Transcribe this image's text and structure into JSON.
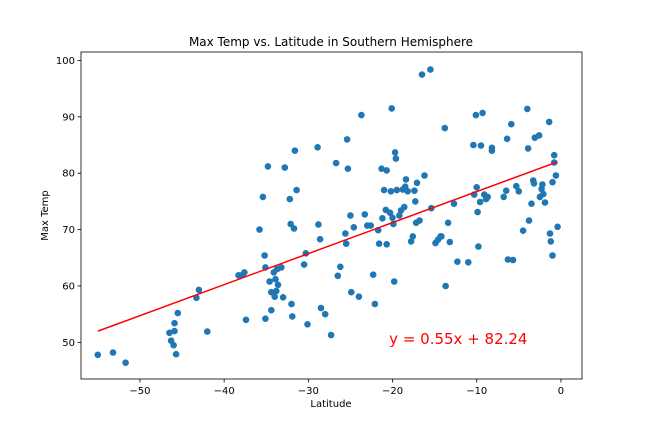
{
  "chart_data": {
    "type": "scatter",
    "title": "Max Temp vs. Latitude in Southern Hemisphere",
    "xlabel": "Latitude",
    "ylabel": "Max Temp",
    "xlim": [
      -57,
      2.5
    ],
    "ylim": [
      43.5,
      101.5
    ],
    "xticks": [
      -50,
      -40,
      -30,
      -20,
      -10,
      0
    ],
    "xtick_labels": [
      "−50",
      "−40",
      "−30",
      "−20",
      "−10",
      "0"
    ],
    "yticks": [
      50,
      60,
      70,
      80,
      90,
      100
    ],
    "ytick_labels": [
      "50",
      "60",
      "70",
      "80",
      "90",
      "100"
    ],
    "grid": false,
    "legend": "none",
    "point_color": "#1f77b4",
    "line_color": "#ff0000",
    "points": [
      [
        -55.0,
        47.8
      ],
      [
        -53.2,
        48.2
      ],
      [
        -51.7,
        46.4
      ],
      [
        -46.5,
        51.7
      ],
      [
        -46.3,
        50.3
      ],
      [
        -46.0,
        49.5
      ],
      [
        -45.9,
        53.4
      ],
      [
        -45.7,
        47.9
      ],
      [
        -45.5,
        55.2
      ],
      [
        -45.9,
        52.0
      ],
      [
        -43.3,
        57.9
      ],
      [
        -43.0,
        59.3
      ],
      [
        -42.0,
        51.9
      ],
      [
        -38.3,
        61.9
      ],
      [
        -37.8,
        62.0
      ],
      [
        -37.6,
        62.4
      ],
      [
        -37.4,
        54.0
      ],
      [
        -35.8,
        70.0
      ],
      [
        -35.4,
        75.8
      ],
      [
        -35.2,
        65.4
      ],
      [
        -35.1,
        63.3
      ],
      [
        -35.1,
        54.2
      ],
      [
        -34.8,
        81.2
      ],
      [
        -34.6,
        60.8
      ],
      [
        -34.4,
        58.9
      ],
      [
        -34.4,
        55.7
      ],
      [
        -34.1,
        62.4
      ],
      [
        -34.0,
        58.1
      ],
      [
        -33.9,
        61.2
      ],
      [
        -33.8,
        59.1
      ],
      [
        -33.7,
        63.0
      ],
      [
        -33.6,
        60.2
      ],
      [
        -33.2,
        63.3
      ],
      [
        -33.0,
        58.0
      ],
      [
        -32.8,
        81.0
      ],
      [
        -32.2,
        75.4
      ],
      [
        -32.1,
        71.0
      ],
      [
        -32.0,
        56.8
      ],
      [
        -31.9,
        54.6
      ],
      [
        -31.7,
        70.2
      ],
      [
        -31.6,
        84.0
      ],
      [
        -31.4,
        77.0
      ],
      [
        -30.5,
        63.8
      ],
      [
        -30.3,
        65.8
      ],
      [
        -30.1,
        53.2
      ],
      [
        -28.9,
        84.6
      ],
      [
        -28.8,
        70.9
      ],
      [
        -28.6,
        68.3
      ],
      [
        -28.5,
        56.1
      ],
      [
        -28.0,
        55.0
      ],
      [
        -27.3,
        51.3
      ],
      [
        -26.7,
        81.8
      ],
      [
        -26.5,
        61.8
      ],
      [
        -26.2,
        63.4
      ],
      [
        -25.6,
        69.3
      ],
      [
        -25.5,
        67.5
      ],
      [
        -25.4,
        86.0
      ],
      [
        -25.3,
        80.8
      ],
      [
        -25.0,
        72.5
      ],
      [
        -24.9,
        58.9
      ],
      [
        -24.6,
        70.4
      ],
      [
        -24.0,
        58.1
      ],
      [
        -23.7,
        90.3
      ],
      [
        -23.3,
        72.7
      ],
      [
        -23.0,
        70.7
      ],
      [
        -22.6,
        70.7
      ],
      [
        -22.3,
        62.0
      ],
      [
        -22.1,
        56.8
      ],
      [
        -21.7,
        69.9
      ],
      [
        -21.6,
        67.5
      ],
      [
        -21.3,
        80.8
      ],
      [
        -21.2,
        72.0
      ],
      [
        -21.0,
        77.0
      ],
      [
        -20.8,
        73.5
      ],
      [
        -20.7,
        67.4
      ],
      [
        -20.7,
        80.5
      ],
      [
        -20.3,
        73.0
      ],
      [
        -20.2,
        76.8
      ],
      [
        -20.1,
        91.5
      ],
      [
        -20.0,
        72.1
      ],
      [
        -19.9,
        71.0
      ],
      [
        -19.8,
        60.8
      ],
      [
        -19.7,
        83.7
      ],
      [
        -19.6,
        82.6
      ],
      [
        -19.5,
        77.0
      ],
      [
        -19.2,
        72.5
      ],
      [
        -19.0,
        73.4
      ],
      [
        -18.8,
        77.1
      ],
      [
        -18.6,
        74.0
      ],
      [
        -18.5,
        77.6
      ],
      [
        -18.4,
        78.9
      ],
      [
        -18.2,
        76.8
      ],
      [
        -17.8,
        67.9
      ],
      [
        -17.6,
        68.8
      ],
      [
        -17.4,
        76.9
      ],
      [
        -17.3,
        75.0
      ],
      [
        -17.2,
        71.2
      ],
      [
        -17.1,
        78.3
      ],
      [
        -16.8,
        71.6
      ],
      [
        -16.5,
        97.5
      ],
      [
        -16.2,
        79.6
      ],
      [
        -15.5,
        98.4
      ],
      [
        -15.4,
        73.8
      ],
      [
        -14.9,
        67.6
      ],
      [
        -14.6,
        68.2
      ],
      [
        -14.3,
        68.8
      ],
      [
        -14.2,
        68.8
      ],
      [
        -13.8,
        88.0
      ],
      [
        -13.7,
        60.0
      ],
      [
        -13.4,
        71.2
      ],
      [
        -13.2,
        67.8
      ],
      [
        -12.7,
        74.6
      ],
      [
        -12.3,
        64.3
      ],
      [
        -11.0,
        64.2
      ],
      [
        -10.4,
        85.0
      ],
      [
        -10.3,
        76.2
      ],
      [
        -10.1,
        90.3
      ],
      [
        -10.0,
        77.5
      ],
      [
        -9.9,
        73.1
      ],
      [
        -9.8,
        67.0
      ],
      [
        -9.6,
        74.9
      ],
      [
        -9.5,
        84.9
      ],
      [
        -9.3,
        90.7
      ],
      [
        -9.1,
        76.2
      ],
      [
        -8.9,
        75.4
      ],
      [
        -8.7,
        75.8
      ],
      [
        -8.2,
        84.5
      ],
      [
        -8.2,
        84.0
      ],
      [
        -6.8,
        75.8
      ],
      [
        -6.5,
        76.9
      ],
      [
        -6.4,
        86.1
      ],
      [
        -6.3,
        64.7
      ],
      [
        -5.9,
        88.7
      ],
      [
        -5.7,
        64.6
      ],
      [
        -5.3,
        77.7
      ],
      [
        -5.0,
        76.8
      ],
      [
        -4.5,
        69.8
      ],
      [
        -4.0,
        91.4
      ],
      [
        -3.9,
        84.4
      ],
      [
        -3.8,
        71.6
      ],
      [
        -3.5,
        74.6
      ],
      [
        -3.3,
        78.7
      ],
      [
        -3.2,
        78.2
      ],
      [
        -3.1,
        86.3
      ],
      [
        -2.6,
        86.7
      ],
      [
        -2.5,
        75.8
      ],
      [
        -2.3,
        77.2
      ],
      [
        -2.2,
        78.0
      ],
      [
        -2.1,
        76.3
      ],
      [
        -1.9,
        74.8
      ],
      [
        -1.4,
        89.1
      ],
      [
        -1.3,
        69.3
      ],
      [
        -1.2,
        67.9
      ],
      [
        -1.0,
        78.4
      ],
      [
        -1.0,
        65.4
      ],
      [
        -0.8,
        83.2
      ],
      [
        -0.8,
        81.9
      ],
      [
        -0.6,
        79.6
      ],
      [
        -0.4,
        70.5
      ]
    ],
    "regression": {
      "slope": 0.55,
      "intercept": 82.24,
      "x_range": [
        -55.0,
        -0.4
      ],
      "equation": "y = 0.55x + 82.24",
      "equation_position_data": [
        -20.4,
        49.7
      ]
    }
  }
}
